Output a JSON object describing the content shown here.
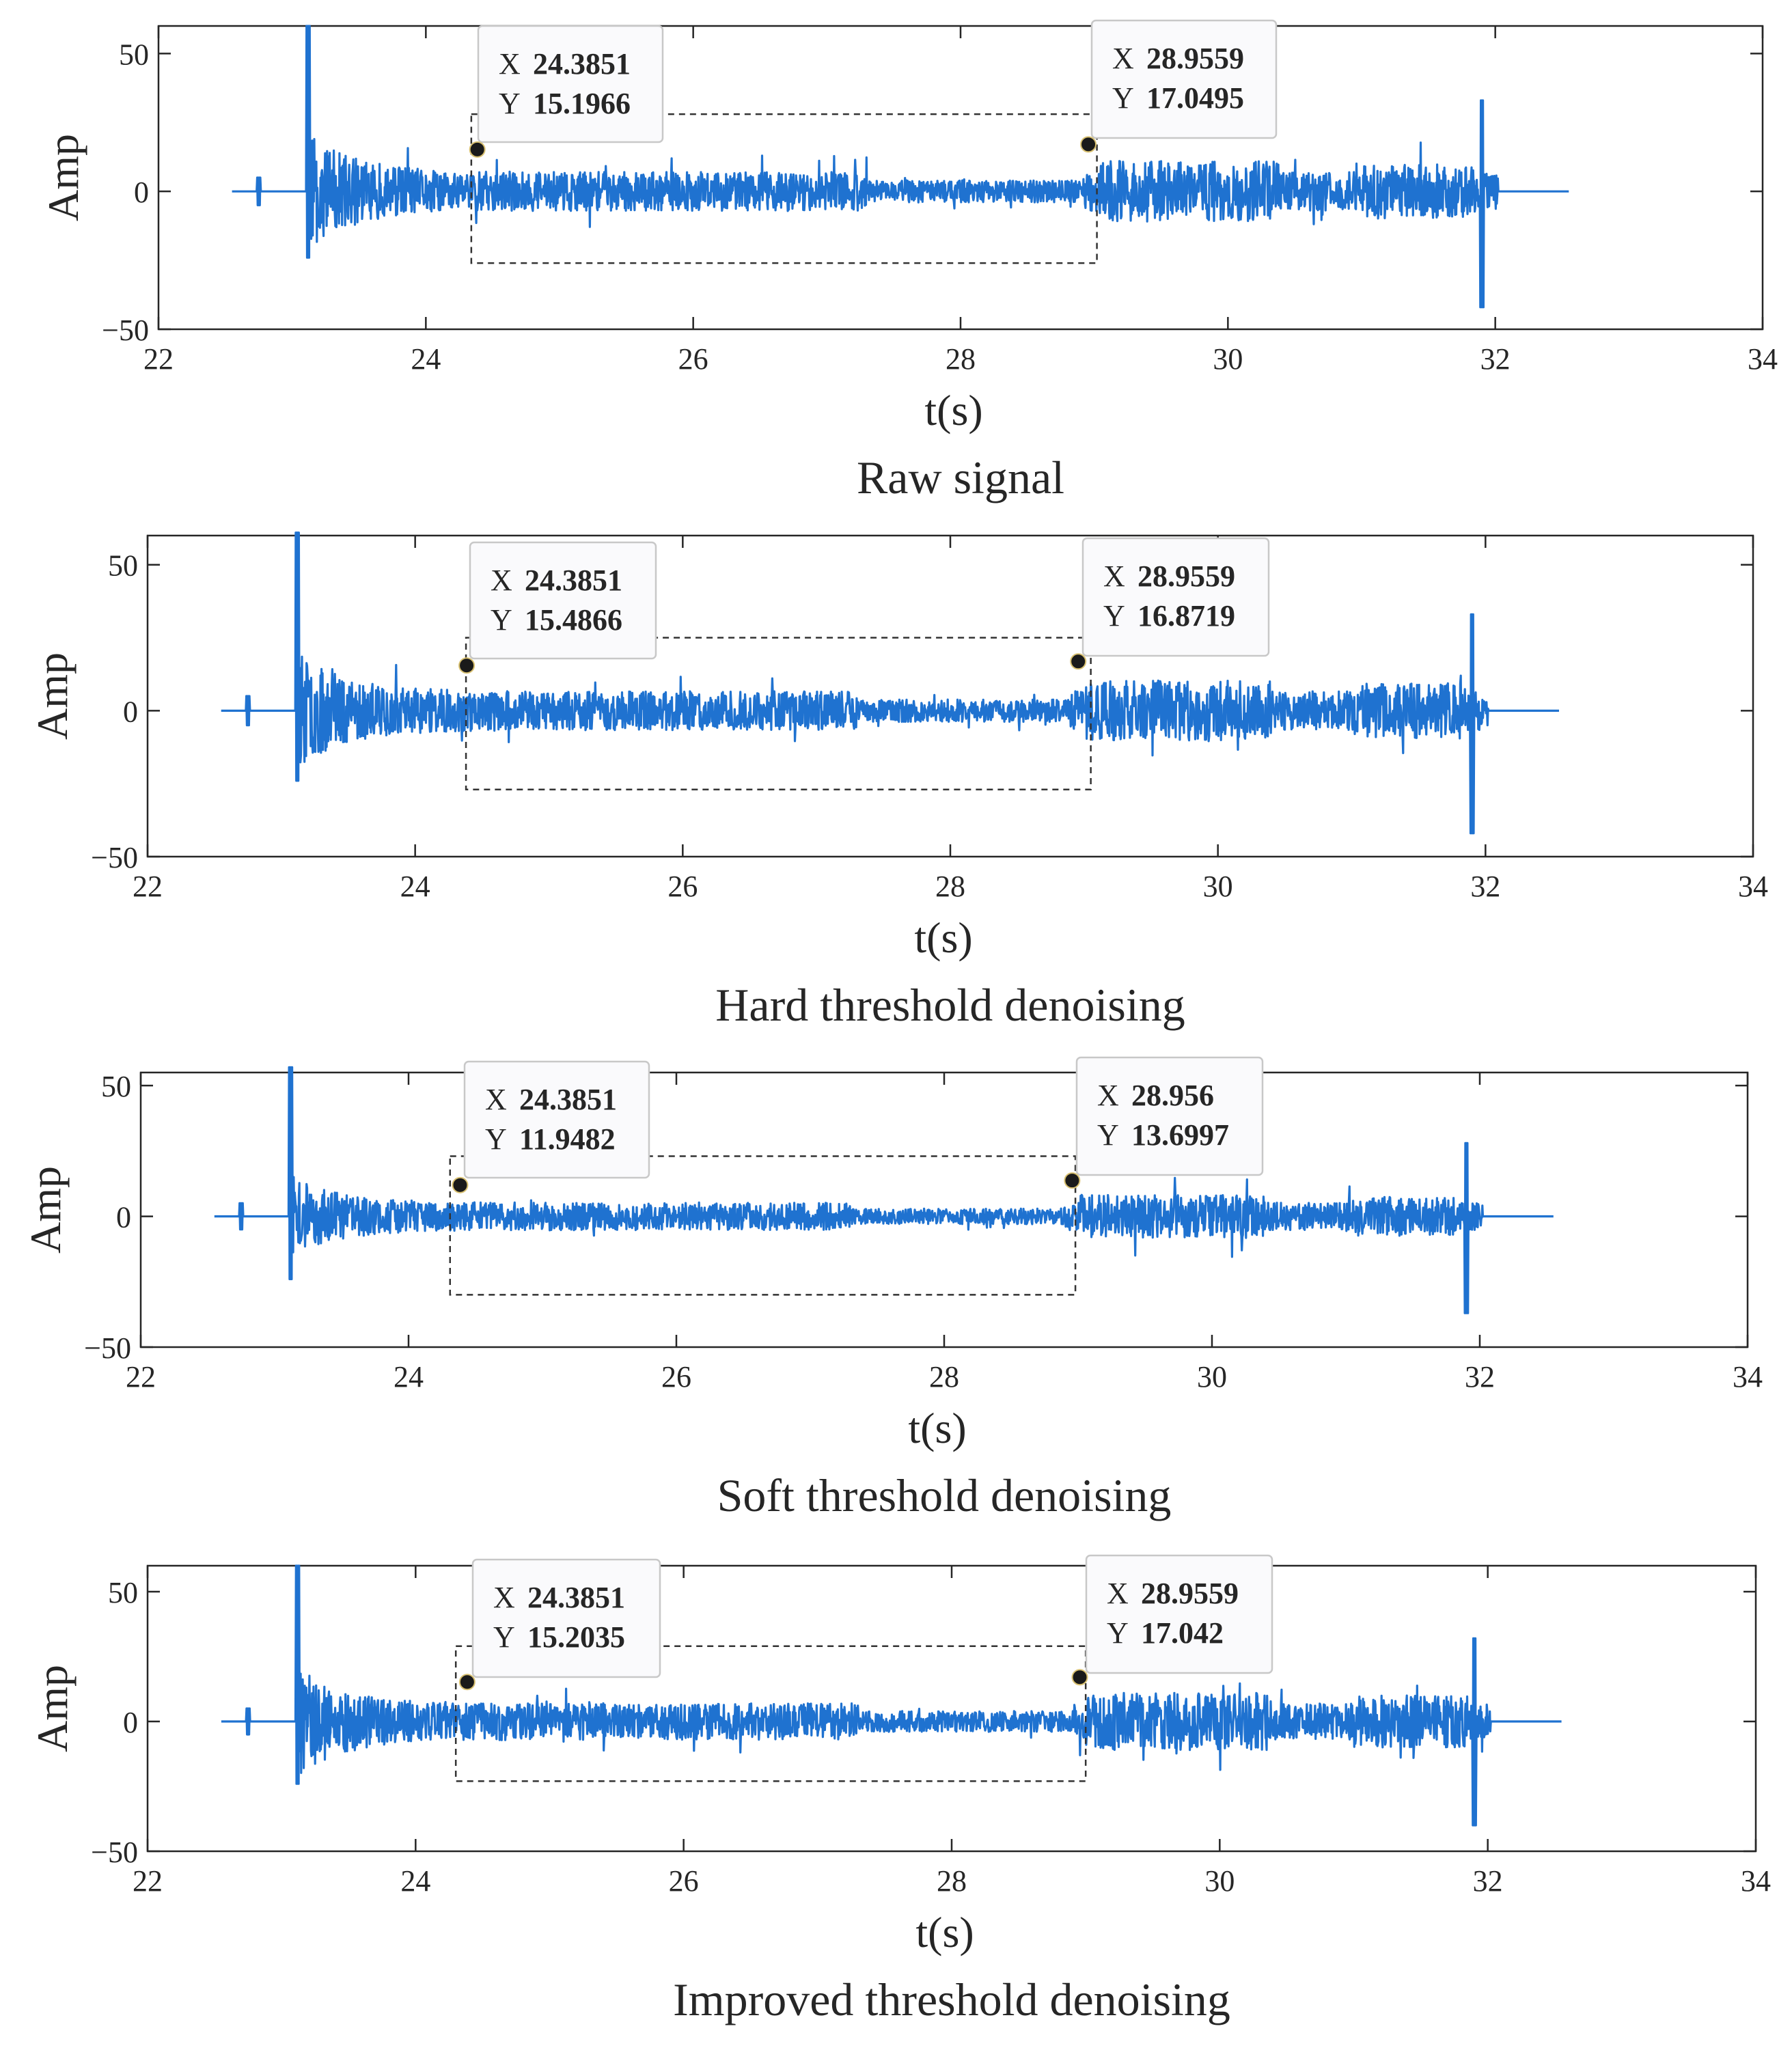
{
  "colors": {
    "signal": "#1f72d0",
    "datatip_value": "#1aa3e6",
    "datatip_border": "#c8c8c8",
    "datatip_background": "#fafafc",
    "marker": "#1a1a1a",
    "axis": "#262626"
  },
  "chart_data": [
    {
      "type": "line",
      "title": "Raw signal",
      "xlabel": "t(s)",
      "ylabel": "Amp",
      "xlim": [
        22,
        34
      ],
      "ylim": [
        -50,
        60
      ],
      "xticks": [
        "22",
        "24",
        "26",
        "28",
        "30",
        "32",
        "34"
      ],
      "yticks": [
        "50",
        "0",
        "−50"
      ],
      "series": [
        {
          "name": "Raw signal",
          "t_start": 22.55,
          "t_end": 32.55,
          "onset": 23.12,
          "end_spike": 31.9,
          "peak": 60,
          "end_peak": 33,
          "end_trough": -42,
          "noise_level": 1.0,
          "seed": 11
        }
      ],
      "datatips": [
        {
          "x_label": "X",
          "x_value": "24.3851",
          "y_label": "Y",
          "y_value": "15.1966",
          "x": 24.3851,
          "y": 15.1966
        },
        {
          "x_label": "X",
          "x_value": "28.9559",
          "y_label": "Y",
          "y_value": "17.0495",
          "x": 28.9559,
          "y": 17.0495
        }
      ],
      "highlight_region": {
        "x_start": 24.34,
        "x_end": 29.02,
        "y_min": -26,
        "y_max": 28
      }
    },
    {
      "type": "line",
      "title": "Hard threshold denoising",
      "xlabel": "t(s)",
      "ylabel": "Amp",
      "xlim": [
        22,
        34
      ],
      "ylim": [
        -50,
        60
      ],
      "xticks": [
        "22",
        "24",
        "26",
        "28",
        "30",
        "32",
        "34"
      ],
      "yticks": [
        "50",
        "0",
        "−50"
      ],
      "series": [
        {
          "name": "Hard threshold denoising",
          "t_start": 22.55,
          "t_end": 32.55,
          "onset": 23.12,
          "end_spike": 31.9,
          "peak": 61,
          "end_peak": 33,
          "end_trough": -42,
          "noise_level": 0.95,
          "seed": 23
        }
      ],
      "datatips": [
        {
          "x_label": "X",
          "x_value": "24.3851",
          "y_label": "Y",
          "y_value": "15.4866",
          "x": 24.3851,
          "y": 15.4866
        },
        {
          "x_label": "X",
          "x_value": "28.9559",
          "y_label": "Y",
          "y_value": "16.8719",
          "x": 28.9559,
          "y": 16.8719
        }
      ],
      "highlight_region": {
        "x_start": 24.38,
        "x_end": 29.05,
        "y_min": -27,
        "y_max": 25
      }
    },
    {
      "type": "line",
      "title": "Soft threshold denoising",
      "xlabel": "t(s)",
      "ylabel": "Amp",
      "xlim": [
        22,
        34
      ],
      "ylim": [
        -50,
        55
      ],
      "xticks": [
        "22",
        "24",
        "26",
        "28",
        "30",
        "32",
        "34"
      ],
      "yticks": [
        "50",
        "0",
        "−50"
      ],
      "series": [
        {
          "name": "Soft threshold denoising",
          "t_start": 22.55,
          "t_end": 32.55,
          "onset": 23.12,
          "end_spike": 31.9,
          "peak": 57,
          "end_peak": 28,
          "end_trough": -37,
          "noise_level": 0.75,
          "seed": 37
        }
      ],
      "datatips": [
        {
          "x_label": "X",
          "x_value": "24.3851",
          "y_label": "Y",
          "y_value": "11.9482",
          "x": 24.3851,
          "y": 11.9482
        },
        {
          "x_label": "X",
          "x_value": "28.956",
          "y_label": "Y",
          "y_value": "13.6997",
          "x": 28.956,
          "y": 13.6997
        }
      ],
      "highlight_region": {
        "x_start": 24.31,
        "x_end": 28.98,
        "y_min": -30,
        "y_max": 23
      }
    },
    {
      "type": "line",
      "title": "Improved threshold denoising",
      "xlabel": "t(s)",
      "ylabel": "Amp",
      "xlim": [
        22,
        34
      ],
      "ylim": [
        -50,
        60
      ],
      "xticks": [
        "22",
        "24",
        "26",
        "28",
        "30",
        "32",
        "34"
      ],
      "yticks": [
        "50",
        "0",
        "−50"
      ],
      "series": [
        {
          "name": "Improved threshold denoising",
          "t_start": 22.55,
          "t_end": 32.55,
          "onset": 23.12,
          "end_spike": 31.9,
          "peak": 60,
          "end_peak": 32,
          "end_trough": -40,
          "noise_level": 1.0,
          "seed": 51
        }
      ],
      "datatips": [
        {
          "x_label": "X",
          "x_value": "24.3851",
          "y_label": "Y",
          "y_value": "15.2035",
          "x": 24.3851,
          "y": 15.2035
        },
        {
          "x_label": "X",
          "x_value": "28.9559",
          "y_label": "Y",
          "y_value": "17.042",
          "x": 28.9559,
          "y": 17.042
        }
      ],
      "highlight_region": {
        "x_start": 24.3,
        "x_end": 29.0,
        "y_min": -23,
        "y_max": 29
      }
    }
  ]
}
